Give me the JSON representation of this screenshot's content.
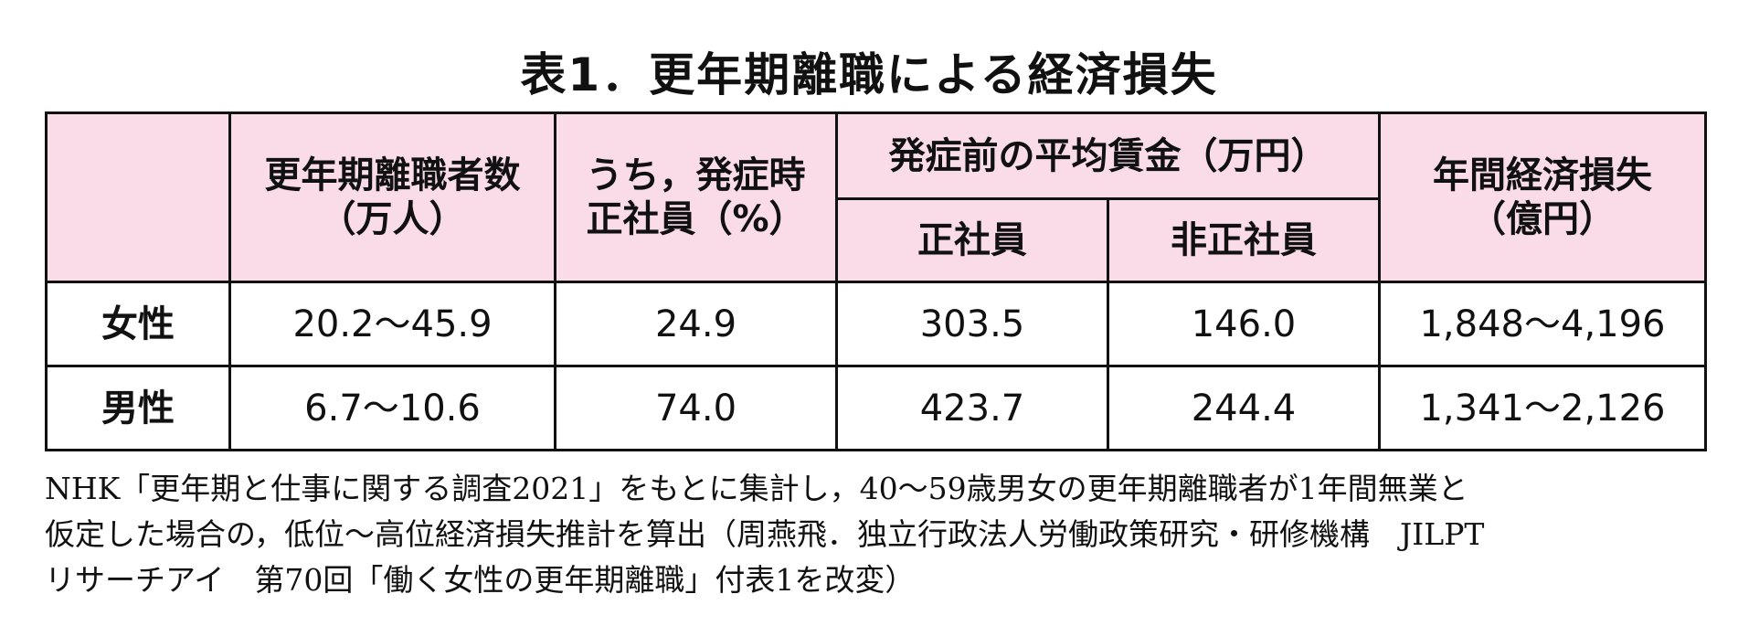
{
  "title": "表1．更年期離職による経済損失",
  "table": {
    "header": {
      "leavers": [
        "更年期離職者数",
        "（万人）"
      ],
      "regular_share": [
        "うち，発症時",
        "正社員（%）"
      ],
      "wage_group": "発症前の平均賃金（万円）",
      "wage_sub": [
        "正社員",
        "非正社員"
      ],
      "loss": [
        "年間経済損失",
        "（億円）"
      ]
    },
    "rows": [
      [
        "女性",
        "20.2～45.9",
        "24.9",
        "303.5",
        "146.0",
        "1,848～4,196"
      ],
      [
        "男性",
        "6.7～10.6",
        "74.0",
        "423.7",
        "244.4",
        "1,341～2,126"
      ]
    ]
  },
  "footnote": [
    "NHK「更年期と仕事に関する調査2021」をもとに集計し，40～59歳男女の更年期離職者が1年間無業と",
    "仮定した場合の，低位～高位経済損失推計を算出（周燕飛．独立行政法人労働政策研究・研修機構　JILPT",
    "リサーチアイ　第70回「働く女性の更年期離職」付表1を改変）"
  ]
}
